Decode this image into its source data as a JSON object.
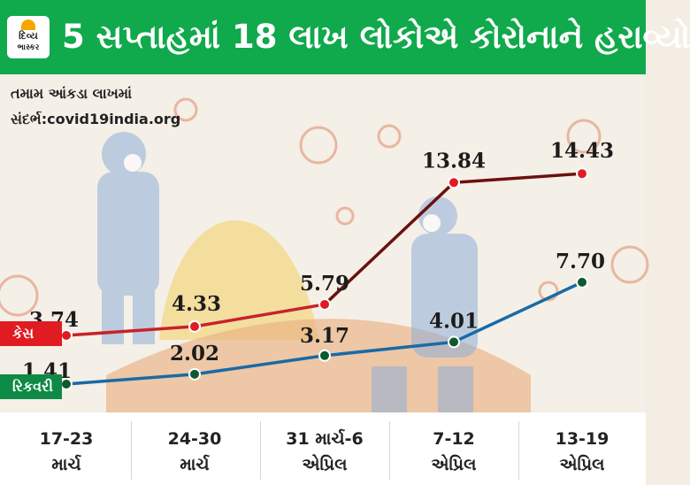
{
  "header": {
    "title": "5 સપ્તાહમાં 18 લાખ લોકોએ કોરોનાને હરાવ્યો"
  },
  "logo": {
    "line1": "દિવ્ય",
    "line2": "ભાસ્કર",
    "accent": "#f7a600"
  },
  "notes": {
    "units": "તમામ આંકડા લાખમાં",
    "source": "સંદર્ભ:covid19india.org"
  },
  "legend": {
    "cases": "કેસ",
    "recovery": "રિકવરી"
  },
  "colors": {
    "header": "#10a94c",
    "cases_line": "#6b1010",
    "cases_start": "#c8222a",
    "recovery_line": "#1a6aa6",
    "cases_dot": "#e11b22",
    "recovery_dot": "#0d5a2e"
  },
  "chart_data": {
    "type": "line",
    "categories": [
      "17-23 માર્ચ",
      "24-30 માર્ચ",
      "31 માર્ચ-6 એપ્રિલ",
      "7-12 એપ્રિલ",
      "13-19 એપ્રિલ"
    ],
    "category_lines": [
      [
        "17-23",
        "માર્ચ"
      ],
      [
        "24-30",
        "માર્ચ"
      ],
      [
        "31 માર્ચ-6",
        "એપ્રિલ"
      ],
      [
        "7-12",
        "એપ્રિલ"
      ],
      [
        "13-19",
        "એપ્રિલ"
      ]
    ],
    "series": [
      {
        "name": "કેસ",
        "values": [
          3.74,
          4.33,
          5.79,
          13.84,
          14.43
        ],
        "labels": [
          "3.74",
          "4.33",
          "5.79",
          "13.84",
          "14.43"
        ]
      },
      {
        "name": "રિકવરી",
        "values": [
          1.41,
          2.02,
          3.17,
          4.01,
          7.7
        ],
        "labels": [
          "1.41",
          "2.02",
          "3.17",
          "4.01",
          "7.70"
        ]
      }
    ],
    "grid": false,
    "legend": "left"
  }
}
